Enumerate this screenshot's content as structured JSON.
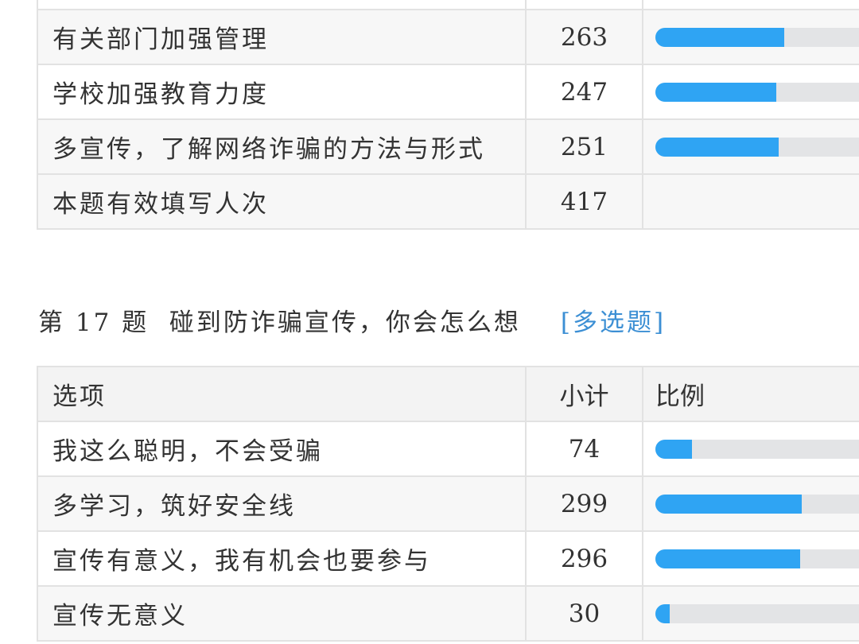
{
  "q16": {
    "rows": [
      {
        "option": "",
        "count": "",
        "fraction": null
      },
      {
        "option": "有关部门加强管理",
        "count": "263",
        "fraction": 0.6307
      },
      {
        "option": "学校加强教育力度",
        "count": "247",
        "fraction": 0.5923
      },
      {
        "option": "多宣传，了解网络诈骗的方法与形式",
        "count": "251",
        "fraction": 0.6019
      }
    ],
    "total_label": "本题有效填写人次",
    "total_count": "417"
  },
  "q17": {
    "number": "第 17 题",
    "title": "碰到防诈骗宣传，你会怎么想",
    "type": "[多选题]",
    "headers": {
      "option": "选项",
      "count": "小计",
      "ratio": "比例"
    },
    "rows": [
      {
        "option": "我这么聪明，不会受骗",
        "count": "74",
        "fraction": 0.1775
      },
      {
        "option": "多学习，筑好安全线",
        "count": "299",
        "fraction": 0.717
      },
      {
        "option": "宣传有意义，我有机会也要参与",
        "count": "296",
        "fraction": 0.7098
      },
      {
        "option": "宣传无意义",
        "count": "30",
        "fraction": 0.0719
      }
    ]
  },
  "colors": {
    "bar_fill": "#2fa4f3",
    "bar_track": "#e3e4e6",
    "link": "#3c8fd4"
  }
}
